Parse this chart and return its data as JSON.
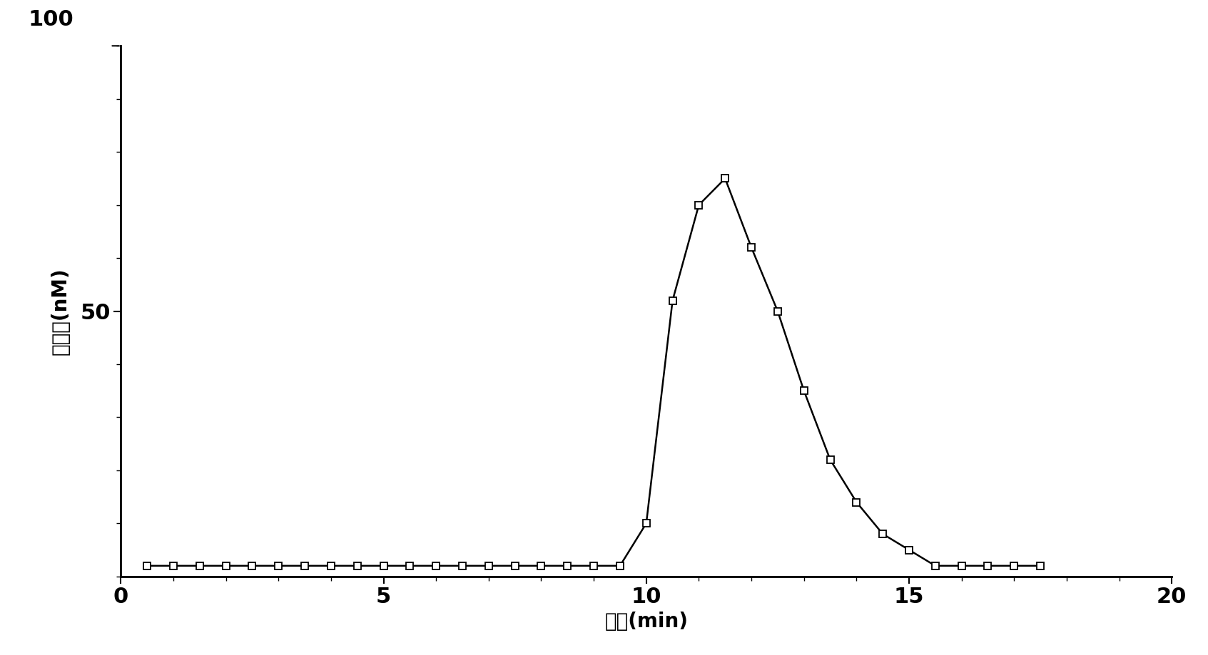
{
  "x": [
    0.5,
    1.0,
    1.5,
    2.0,
    2.5,
    3.0,
    3.5,
    4.0,
    4.5,
    5.0,
    5.5,
    6.0,
    6.5,
    7.0,
    7.5,
    8.0,
    8.5,
    9.0,
    9.5,
    10.0,
    10.5,
    11.0,
    11.5,
    12.0,
    12.5,
    13.0,
    13.5,
    14.0,
    14.5,
    15.0,
    15.5,
    16.0,
    16.5,
    17.0,
    17.5
  ],
  "y": [
    2,
    2,
    2,
    2,
    2,
    2,
    2,
    2,
    2,
    2,
    2,
    2,
    2,
    2,
    2,
    2,
    2,
    2,
    2,
    10,
    52,
    70,
    75,
    62,
    50,
    35,
    22,
    14,
    8,
    5,
    2,
    2,
    2,
    2,
    2
  ],
  "xlabel": "时间(min)",
  "ylabel": "凝血酶(nM)",
  "xlim": [
    0,
    20
  ],
  "ylim": [
    0,
    100
  ],
  "xticks": [
    0,
    5,
    10,
    15,
    20
  ],
  "yticks": [
    50,
    100
  ],
  "ytick_labels": [
    "50",
    "100"
  ],
  "line_color": "#000000",
  "marker": "s",
  "marker_size": 7,
  "marker_facecolor": "#ffffff",
  "marker_edgecolor": "#000000",
  "line_width": 1.8,
  "background_color": "#ffffff",
  "label_fontsize": 20,
  "tick_fontsize": 22
}
